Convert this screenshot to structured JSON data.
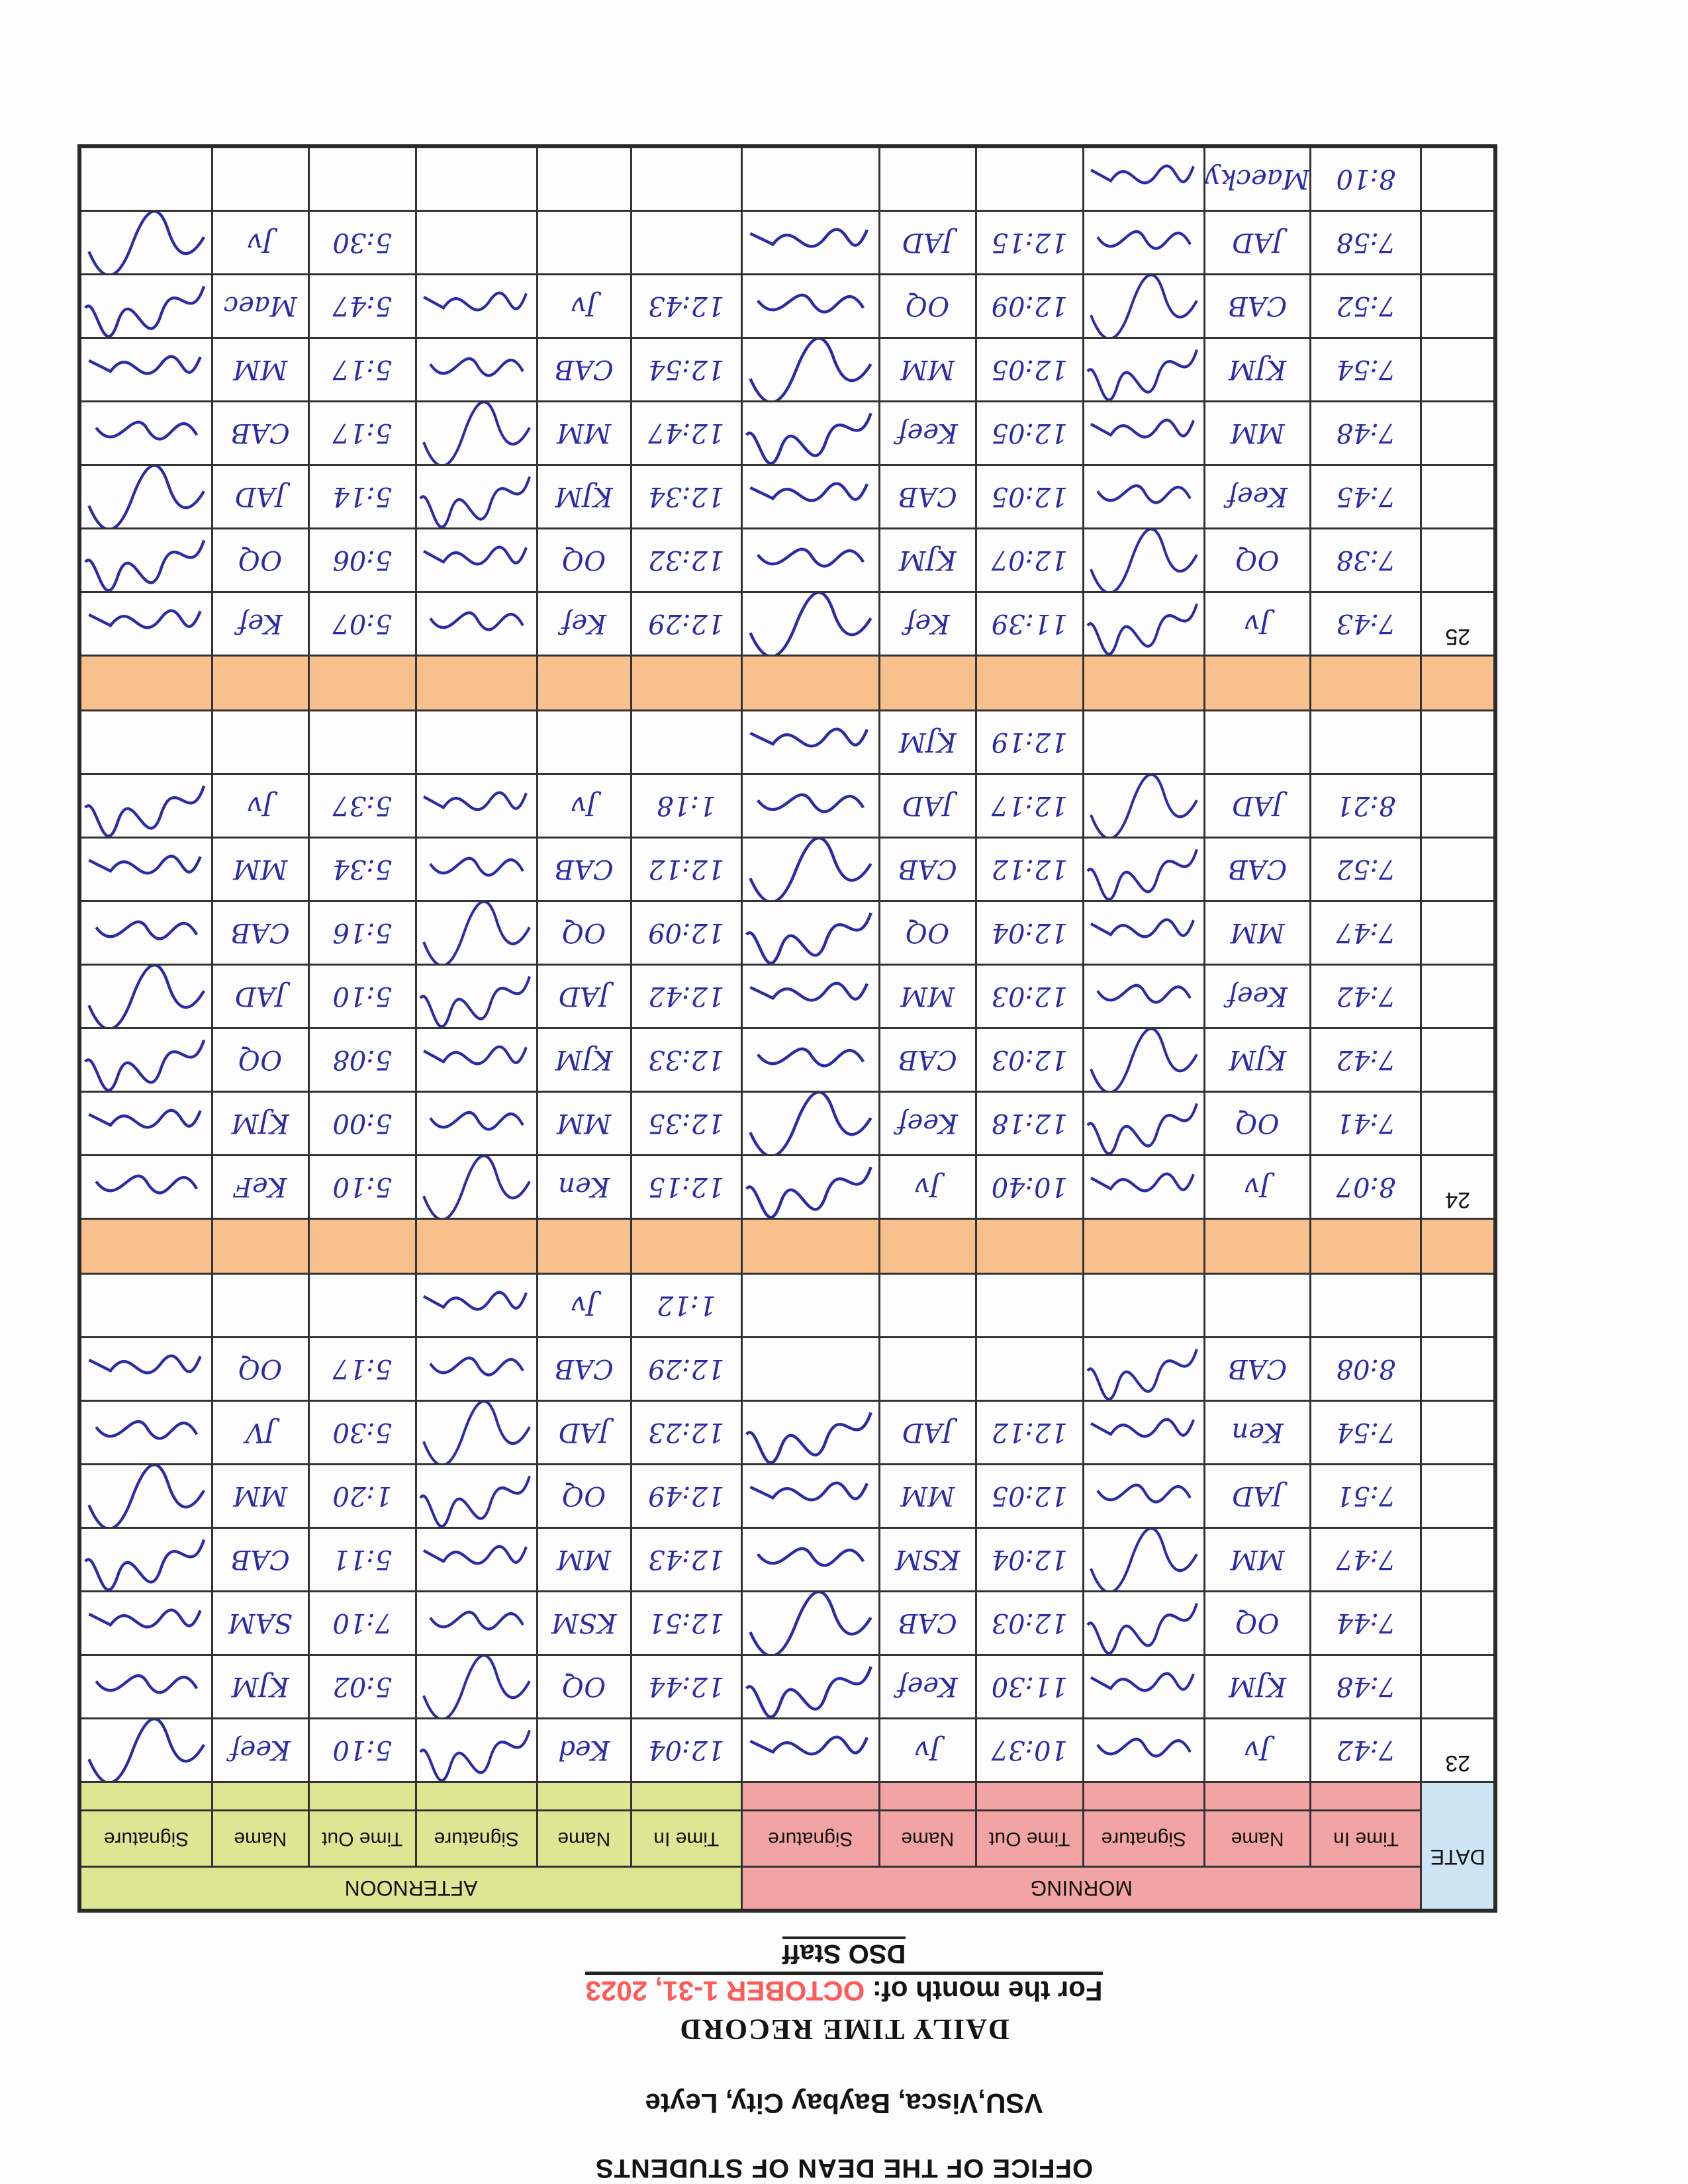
{
  "header": {
    "office": "OFFICE OF THE DEAN OF STUDENTS",
    "address": "VSU,Visca, Baybay City, Leyte",
    "title": "DAILY TIME RECORD",
    "month_label": "For the month of:",
    "month_value": "OCTOBER 1-31, 2023",
    "staff": "DSO Staff"
  },
  "colors": {
    "morning": "#f2a4a4",
    "afternoon": "#dde693",
    "date": "#cde4f5",
    "separator": "#f8c08c",
    "ink": "#2b2ba6",
    "month_value": "#ff5a5a"
  },
  "columns": {
    "date": "DATE",
    "morning": "MORNING",
    "afternoon": "AFTERNOON",
    "time_in": "Time In",
    "name": "Name",
    "signature": "Signature",
    "time_out": "Time Out"
  },
  "blocks": [
    {
      "date": "23",
      "rows": [
        [
          "7:42",
          "Jv",
          "10:37",
          "Jv",
          "12:04",
          "Ked",
          "5:10",
          "Keef"
        ],
        [
          "7:48",
          "KJM",
          "11:30",
          "Keef",
          "12:44",
          "OQ",
          "5:02",
          "KJM"
        ],
        [
          "7:44",
          "OQ",
          "12:03",
          "CAB",
          "12:51",
          "KSM",
          "7:10",
          "SAM"
        ],
        [
          "7:47",
          "MM",
          "12:04",
          "KSM",
          "12:43",
          "MM",
          "5:11",
          "CAB"
        ],
        [
          "7:51",
          "JAD",
          "12:05",
          "MM",
          "12:49",
          "OQ",
          "1:20",
          "MM"
        ],
        [
          "7:54",
          "Ken",
          "12:12",
          "JAD",
          "12:23",
          "JAD",
          "5:30",
          "JV"
        ],
        [
          "8:08",
          "CAB",
          "",
          "",
          "12:29",
          "CAB",
          "5:17",
          "OQ"
        ],
        [
          "",
          "",
          "",
          "",
          "1:12",
          "Jv",
          "",
          ""
        ]
      ]
    },
    {
      "date": "24",
      "rows": [
        [
          "8:07",
          "Jv",
          "10:40",
          "Jv",
          "12:15",
          "Ken",
          "5:10",
          "KeF"
        ],
        [
          "7:41",
          "OQ",
          "12:18",
          "Keef",
          "12:35",
          "MM",
          "5:00",
          "KJM"
        ],
        [
          "7:42",
          "KJM",
          "12:03",
          "CAB",
          "12:33",
          "KJM",
          "5:08",
          "OQ"
        ],
        [
          "7:42",
          "Keef",
          "12:03",
          "MM",
          "12:42",
          "JAD",
          "5:10",
          "JAD"
        ],
        [
          "7:47",
          "MM",
          "12:04",
          "OQ",
          "12:09",
          "OQ",
          "5:16",
          "CAB"
        ],
        [
          "7:52",
          "CAB",
          "12:12",
          "CAB",
          "12:12",
          "CAB",
          "5:34",
          "MM"
        ],
        [
          "8:21",
          "JAD",
          "12:17",
          "JAD",
          "1:18",
          "Jv",
          "5:37",
          "Jv"
        ],
        [
          "",
          "",
          "12:19",
          "KJM",
          "",
          "",
          "",
          ""
        ]
      ]
    },
    {
      "date": "25",
      "rows": [
        [
          "7:43",
          "Jv",
          "11:39",
          "Kef",
          "12:29",
          "Kef",
          "5:07",
          "Kef"
        ],
        [
          "7:38",
          "OQ",
          "12:07",
          "KJM",
          "12:32",
          "OQ",
          "5:06",
          "OQ"
        ],
        [
          "7:45",
          "Keef",
          "12:05",
          "CAB",
          "12:34",
          "KJM",
          "5:14",
          "JAD"
        ],
        [
          "7:48",
          "MM",
          "12:05",
          "Keef",
          "12:47",
          "MM",
          "5:17",
          "CAB"
        ],
        [
          "7:54",
          "KJM",
          "12:05",
          "MM",
          "12:54",
          "CAB",
          "5:17",
          "MM"
        ],
        [
          "7:52",
          "CAB",
          "12:09",
          "OQ",
          "12:43",
          "Jv",
          "5:47",
          "Maec"
        ],
        [
          "7:58",
          "JAD",
          "12:15",
          "JAD",
          "",
          "",
          "5:30",
          "Jv"
        ],
        [
          "8:10",
          "Maecky",
          "",
          "",
          "",
          "",
          "",
          ""
        ]
      ]
    }
  ]
}
